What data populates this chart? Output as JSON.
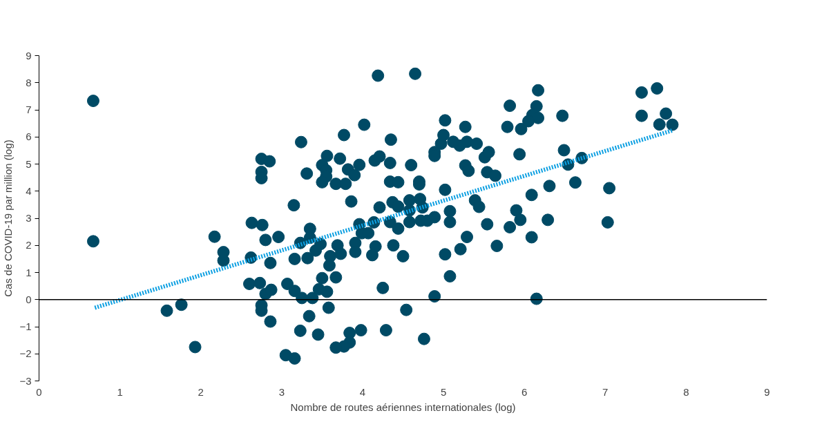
{
  "chart_data": {
    "type": "scatter",
    "xlabel": "Nombre de routes aériennes internationales (log)",
    "ylabel": "Cas de COVID-19 par million (log)",
    "xlim": [
      0,
      9
    ],
    "xticks": [
      0,
      1,
      2,
      3,
      4,
      5,
      6,
      7,
      8,
      9
    ],
    "ylim": [
      -3,
      9
    ],
    "yticks": [
      -3,
      -2,
      -1,
      0,
      1,
      2,
      3,
      4,
      5,
      6,
      7,
      8,
      9
    ],
    "grid": false,
    "ref_lines": [
      {
        "axis": "y",
        "value": 0,
        "color": "#000000",
        "line_style": "solid"
      }
    ],
    "series": [
      {
        "color": "#004a65",
        "marker": "circle",
        "x": [
          0.67,
          0.67,
          1.58,
          1.76,
          1.93,
          2.17,
          2.28,
          2.28,
          2.63,
          2.62,
          2.6,
          2.75,
          2.75,
          2.75,
          2.85,
          2.76,
          2.8,
          2.73,
          2.75,
          2.75,
          2.8,
          2.87,
          2.86,
          2.86,
          2.96,
          3.24,
          3.31,
          3.15,
          3.35,
          3.35,
          3.23,
          3.16,
          3.32,
          3.42,
          3.48,
          3.56,
          3.5,
          3.55,
          3.55,
          3.5,
          3.72,
          3.77,
          3.82,
          3.9,
          3.67,
          3.79,
          3.86,
          3.96,
          4.02,
          3.6,
          3.59,
          3.69,
          3.73,
          3.91,
          3.91,
          3.96,
          3.99,
          4.07,
          4.14,
          4.16,
          4.12,
          4.21,
          4.15,
          4.21,
          4.19,
          4.35,
          4.34,
          4.34,
          4.44,
          4.37,
          4.44,
          4.34,
          4.44,
          4.38,
          4.5,
          4.6,
          4.65,
          4.7,
          4.7,
          4.58,
          4.58,
          4.71,
          4.74,
          4.58,
          4.72,
          4.8,
          4.89,
          4.89,
          4.89,
          4.97,
          5.0,
          5.02,
          5.02,
          5.08,
          5.08,
          5.02,
          5.08,
          4.89,
          4.25,
          4.54,
          4.76,
          4.29,
          3.98,
          3.84,
          3.84,
          3.77,
          3.67,
          3.45,
          3.23,
          3.05,
          3.16,
          3.34,
          3.58,
          3.07,
          3.16,
          3.25,
          3.38,
          3.46,
          3.56,
          3.5,
          3.67,
          5.2,
          5.12,
          5.29,
          5.27,
          5.41,
          5.27,
          5.31,
          5.51,
          5.56,
          5.54,
          5.64,
          5.39,
          5.44,
          5.54,
          5.29,
          5.21,
          5.66,
          5.82,
          5.9,
          5.95,
          5.82,
          5.79,
          5.96,
          5.94,
          6.17,
          6.15,
          6.1,
          6.17,
          6.05,
          6.47,
          6.49,
          6.54,
          6.71,
          6.31,
          6.09,
          6.63,
          7.05,
          6.29,
          7.03,
          6.09,
          6.15,
          7.45,
          7.64,
          7.45,
          7.75,
          7.67,
          7.83
        ],
        "values": [
          7.33,
          2.15,
          -0.41,
          -0.19,
          -1.75,
          2.32,
          1.75,
          1.44,
          2.83,
          1.55,
          0.58,
          5.19,
          4.71,
          4.48,
          5.1,
          2.75,
          2.2,
          0.61,
          -0.21,
          -0.41,
          0.21,
          0.36,
          1.35,
          -0.81,
          2.31,
          5.81,
          4.65,
          3.48,
          2.61,
          2.28,
          2.09,
          1.5,
          1.53,
          1.81,
          2.05,
          5.3,
          4.96,
          4.77,
          4.54,
          4.33,
          5.2,
          6.07,
          4.8,
          4.59,
          4.27,
          4.27,
          3.62,
          4.97,
          6.45,
          1.6,
          1.26,
          2.0,
          1.69,
          2.09,
          1.76,
          2.78,
          2.45,
          2.45,
          2.85,
          1.96,
          1.64,
          3.4,
          5.13,
          5.28,
          8.26,
          5.9,
          5.04,
          4.35,
          4.33,
          3.59,
          3.43,
          2.86,
          2.62,
          2.0,
          1.6,
          4.96,
          8.33,
          4.35,
          4.25,
          3.66,
          3.29,
          3.71,
          3.4,
          2.86,
          2.91,
          2.91,
          3.04,
          5.44,
          5.3,
          5.75,
          6.07,
          6.61,
          4.05,
          3.26,
          2.86,
          1.67,
          0.86,
          0.12,
          0.43,
          -0.38,
          -1.45,
          -1.13,
          -1.13,
          -1.23,
          -1.58,
          -1.73,
          -1.77,
          -1.29,
          -1.15,
          -2.05,
          -2.17,
          -0.61,
          -0.3,
          0.58,
          0.32,
          0.06,
          0.06,
          0.38,
          0.29,
          0.79,
          0.82,
          5.68,
          5.82,
          5.82,
          6.37,
          5.75,
          4.95,
          4.75,
          5.25,
          5.44,
          4.7,
          4.57,
          3.66,
          3.42,
          2.78,
          2.31,
          1.86,
          1.98,
          2.67,
          3.29,
          2.94,
          7.15,
          6.37,
          6.29,
          5.36,
          7.72,
          7.13,
          6.81,
          6.7,
          6.58,
          6.78,
          5.51,
          4.98,
          5.22,
          4.19,
          3.86,
          4.32,
          4.11,
          2.94,
          2.85,
          2.3,
          0.03,
          7.64,
          7.79,
          6.78,
          6.86,
          6.46,
          6.45
        ]
      },
      {
        "type": "line",
        "color": "#0ea0e2",
        "marker": "none",
        "line_style": "dotted",
        "x": [
          0.69,
          7.83
        ],
        "values": [
          -0.3,
          6.24
        ]
      }
    ]
  }
}
